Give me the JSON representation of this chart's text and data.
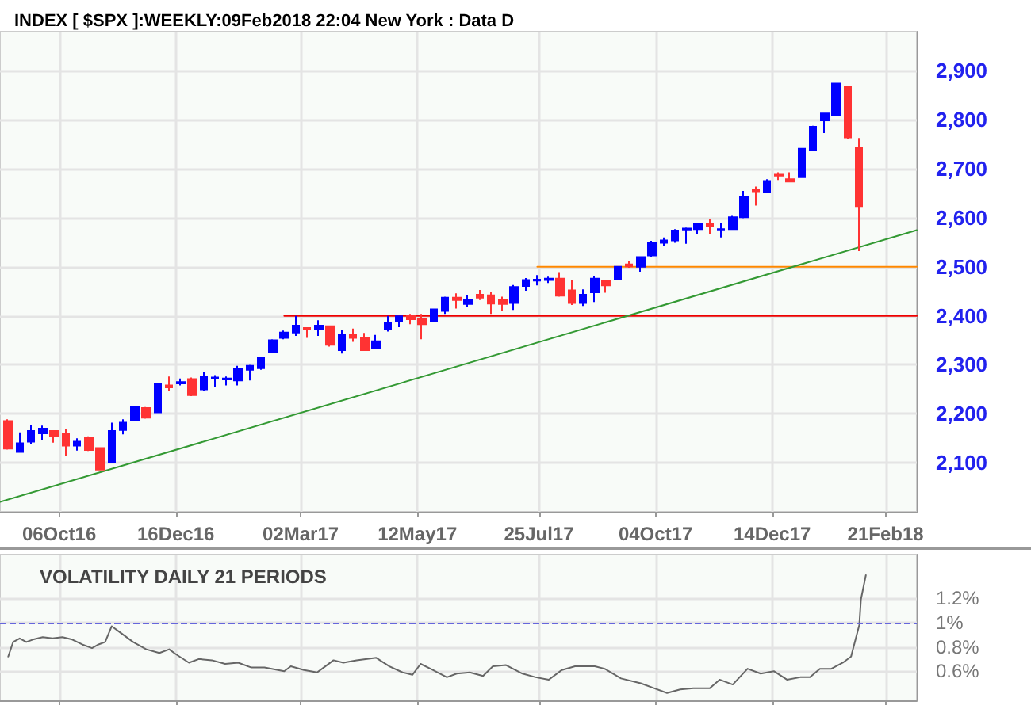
{
  "chart_data": [
    {
      "type": "candlestick",
      "title": "INDEX [ $SPX ]:WEEKLY:09Feb2018 22:04 New York : Data D",
      "xlim": [
        "2016-08-31",
        "2018-03-12"
      ],
      "ylim": [
        2000,
        2980
      ],
      "xticks": [
        {
          "value": "2016-10-06",
          "label": "06Oct16"
        },
        {
          "value": "2016-12-16",
          "label": "16Dec16"
        },
        {
          "value": "2017-03-02",
          "label": "02Mar17"
        },
        {
          "value": "2017-05-12",
          "label": "12May17"
        },
        {
          "value": "2017-07-25",
          "label": "25Jul17"
        },
        {
          "value": "2017-10-04",
          "label": "04Oct17"
        },
        {
          "value": "2017-12-14",
          "label": "14Dec17"
        },
        {
          "value": "2018-02-21",
          "label": "21Feb18"
        }
      ],
      "yticks": [
        {
          "value": 2100,
          "label": "2,100"
        },
        {
          "value": 2200,
          "label": "2,200"
        },
        {
          "value": 2300,
          "label": "2,300"
        },
        {
          "value": 2400,
          "label": "2,400"
        },
        {
          "value": 2500,
          "label": "2,500"
        },
        {
          "value": 2600,
          "label": "2,600"
        },
        {
          "value": 2700,
          "label": "2,700"
        },
        {
          "value": 2800,
          "label": "2,800"
        },
        {
          "value": 2900,
          "label": "2,900"
        }
      ],
      "grid": true,
      "series": [
        {
          "type": "candlestick",
          "x": [
            "2016-09-05",
            "2016-09-12",
            "2016-09-19",
            "2016-09-26",
            "2016-10-03",
            "2016-10-10",
            "2016-10-17",
            "2016-10-24",
            "2016-10-31",
            "2016-11-07",
            "2016-11-14",
            "2016-11-21",
            "2016-11-28",
            "2016-12-05",
            "2016-12-12",
            "2016-12-19",
            "2016-12-26",
            "2017-01-02",
            "2017-01-09",
            "2017-01-16",
            "2017-01-23",
            "2017-01-30",
            "2017-02-06",
            "2017-02-13",
            "2017-02-20",
            "2017-02-27",
            "2017-03-06",
            "2017-03-13",
            "2017-03-20",
            "2017-03-27",
            "2017-04-03",
            "2017-04-10",
            "2017-04-17",
            "2017-04-24",
            "2017-05-01",
            "2017-05-08",
            "2017-05-15",
            "2017-05-22",
            "2017-05-29",
            "2017-06-05",
            "2017-06-12",
            "2017-06-19",
            "2017-06-26",
            "2017-07-03",
            "2017-07-10",
            "2017-07-17",
            "2017-07-24",
            "2017-07-31",
            "2017-08-07",
            "2017-08-14",
            "2017-08-21",
            "2017-08-28",
            "2017-09-04",
            "2017-09-11",
            "2017-09-18",
            "2017-09-25",
            "2017-10-02",
            "2017-10-09",
            "2017-10-16",
            "2017-10-23",
            "2017-10-30",
            "2017-11-06",
            "2017-11-13",
            "2017-11-20",
            "2017-11-27",
            "2017-12-04",
            "2017-12-11",
            "2017-12-18",
            "2017-12-25",
            "2018-01-01",
            "2018-01-08",
            "2018-01-15",
            "2018-01-22",
            "2018-01-29",
            "2018-02-05"
          ],
          "ohlc": [
            [
              2185,
              2189,
              2127,
              2129
            ],
            [
              2122,
              2162,
              2122,
              2140
            ],
            [
              2143,
              2178,
              2138,
              2165
            ],
            [
              2160,
              2176,
              2146,
              2170
            ],
            [
              2165,
              2165,
              2141,
              2154
            ],
            [
              2159,
              2168,
              2115,
              2135
            ],
            [
              2135,
              2150,
              2125,
              2143
            ],
            [
              2151,
              2154,
              2124,
              2126
            ],
            [
              2130,
              2130,
              2086,
              2086
            ],
            [
              2102,
              2182,
              2102,
              2165
            ],
            [
              2167,
              2189,
              2158,
              2182
            ],
            [
              2187,
              2214,
              2187,
              2214
            ],
            [
              2212,
              2214,
              2190,
              2192
            ],
            [
              2203,
              2261,
              2203,
              2261
            ],
            [
              2258,
              2276,
              2247,
              2254
            ],
            [
              2262,
              2272,
              2258,
              2265
            ],
            [
              2271,
              2274,
              2236,
              2238
            ],
            [
              2250,
              2285,
              2247,
              2276
            ],
            [
              2272,
              2279,
              2255,
              2274
            ],
            [
              2270,
              2276,
              2258,
              2272
            ],
            [
              2268,
              2298,
              2258,
              2292
            ],
            [
              2290,
              2300,
              2268,
              2298
            ],
            [
              2293,
              2317,
              2290,
              2315
            ],
            [
              2325,
              2352,
              2325,
              2350
            ],
            [
              2355,
              2370,
              2352,
              2366
            ],
            [
              2366,
              2400,
              2359,
              2380
            ],
            [
              2375,
              2377,
              2355,
              2373
            ],
            [
              2372,
              2391,
              2359,
              2380
            ],
            [
              2379,
              2380,
              2337,
              2341
            ],
            [
              2330,
              2372,
              2323,
              2361
            ],
            [
              2361,
              2374,
              2347,
              2355
            ],
            [
              2355,
              2365,
              2330,
              2330
            ],
            [
              2334,
              2361,
              2334,
              2348
            ],
            [
              2372,
              2400,
              2368,
              2385
            ],
            [
              2388,
              2399,
              2377,
              2399
            ],
            [
              2401,
              2404,
              2383,
              2393
            ],
            [
              2393,
              2404,
              2352,
              2383
            ],
            [
              2388,
              2415,
              2388,
              2413
            ],
            [
              2410,
              2439,
              2404,
              2437
            ],
            [
              2437,
              2446,
              2415,
              2432
            ],
            [
              2424,
              2442,
              2418,
              2433
            ],
            [
              2443,
              2453,
              2432,
              2437
            ],
            [
              2442,
              2448,
              2404,
              2425
            ],
            [
              2432,
              2439,
              2410,
              2424
            ],
            [
              2426,
              2463,
              2412,
              2459
            ],
            [
              2461,
              2477,
              2451,
              2473
            ],
            [
              2472,
              2483,
              2462,
              2474
            ],
            [
              2473,
              2480,
              2467,
              2476
            ],
            [
              2476,
              2489,
              2439,
              2441
            ],
            [
              2452,
              2473,
              2422,
              2426
            ],
            [
              2426,
              2454,
              2420,
              2443
            ],
            [
              2448,
              2482,
              2428,
              2476
            ],
            [
              2471,
              2473,
              2447,
              2462
            ],
            [
              2474,
              2500,
              2474,
              2500
            ],
            [
              2505,
              2512,
              2498,
              2501
            ],
            [
              2500,
              2520,
              2490,
              2520
            ],
            [
              2523,
              2553,
              2520,
              2549
            ],
            [
              2549,
              2560,
              2543,
              2554
            ],
            [
              2554,
              2577,
              2549,
              2574
            ],
            [
              2576,
              2580,
              2547,
              2578
            ],
            [
              2577,
              2590,
              2566,
              2587
            ],
            [
              2587,
              2597,
              2566,
              2582
            ],
            [
              2576,
              2590,
              2560,
              2577
            ],
            [
              2577,
              2604,
              2577,
              2601
            ],
            [
              2601,
              2655,
              2599,
              2643
            ],
            [
              2657,
              2664,
              2625,
              2654
            ],
            [
              2653,
              2679,
              2650,
              2675
            ],
            [
              2688,
              2693,
              2677,
              2686
            ],
            [
              2679,
              2693,
              2674,
              2674
            ],
            [
              2683,
              2741,
              2683,
              2741
            ],
            [
              2739,
              2788,
              2737,
              2786
            ],
            [
              2799,
              2813,
              2773,
              2813
            ],
            [
              2810,
              2874,
              2810,
              2874
            ],
            [
              2868,
              2870,
              2761,
              2764
            ],
            [
              2743,
              2763,
              2532,
              2624
            ]
          ],
          "colors": [
            "#ff3333",
            "#0000ff",
            "#0000ff",
            "#0000ff",
            "#ff3333",
            "#ff3333",
            "#0000ff",
            "#ff3333",
            "#ff3333",
            "#0000ff",
            "#0000ff",
            "#0000ff",
            "#ff3333",
            "#0000ff",
            "#ff3333",
            "#0000ff",
            "#ff3333",
            "#0000ff",
            "#0000ff",
            "#0000ff",
            "#0000ff",
            "#0000ff",
            "#0000ff",
            "#0000ff",
            "#0000ff",
            "#0000ff",
            "#ff3333",
            "#0000ff",
            "#ff3333",
            "#0000ff",
            "#ff3333",
            "#ff3333",
            "#0000ff",
            "#0000ff",
            "#0000ff",
            "#ff3333",
            "#ff3333",
            "#0000ff",
            "#0000ff",
            "#ff3333",
            "#0000ff",
            "#ff3333",
            "#ff3333",
            "#ff3333",
            "#0000ff",
            "#0000ff",
            "#0000ff",
            "#0000ff",
            "#ff3333",
            "#ff3333",
            "#0000ff",
            "#0000ff",
            "#ff3333",
            "#0000ff",
            "#ff3333",
            "#0000ff",
            "#0000ff",
            "#0000ff",
            "#0000ff",
            "#0000ff",
            "#0000ff",
            "#ff3333",
            "#0000ff",
            "#0000ff",
            "#0000ff",
            "#ff3333",
            "#0000ff",
            "#ff3333",
            "#ff3333",
            "#0000ff",
            "#0000ff",
            "#0000ff",
            "#0000ff",
            "#ff3333",
            "#ff3333"
          ]
        },
        {
          "type": "line",
          "color": "#ee0000",
          "x": [
            "2017-02-20",
            "2018-03-12"
          ],
          "values": [
            2400,
            2400
          ]
        },
        {
          "type": "line",
          "color": "#ff8800",
          "x": [
            "2017-07-24",
            "2018-03-12"
          ],
          "values": [
            2500,
            2500
          ]
        },
        {
          "type": "line",
          "color": "#339933",
          "x": [
            "2016-08-31",
            "2018-03-12"
          ],
          "values": [
            2020,
            2575
          ]
        }
      ]
    },
    {
      "type": "line",
      "title": "VOLATILITY DAILY 21 PERIODS",
      "xlim": [
        "2016-08-31",
        "2018-03-12"
      ],
      "ylim": [
        0.36,
        1.56
      ],
      "xticks": [
        {
          "value": "2016-10-06",
          "label": null
        },
        {
          "value": "2016-12-16",
          "label": null
        },
        {
          "value": "2017-03-02",
          "label": null
        },
        {
          "value": "2017-05-12",
          "label": null
        },
        {
          "value": "2017-07-25",
          "label": null
        },
        {
          "value": "2017-10-04",
          "label": null
        },
        {
          "value": "2017-12-14",
          "label": null
        },
        {
          "value": "2018-02-21",
          "label": null
        }
      ],
      "yticks": [
        {
          "value": 0.6,
          "label": "0.6%"
        },
        {
          "value": 0.8,
          "label": "0.8%"
        },
        {
          "value": 1,
          "label": "1%"
        },
        {
          "value": 1.2,
          "label": "1.2%"
        }
      ],
      "grid": true,
      "tick_labels": "y",
      "marker": "none",
      "ref_lines": [
        {
          "axis": "y",
          "value": 1,
          "color": "#6666dd",
          "line_style": "dashed"
        }
      ],
      "series": [
        {
          "color": "#666666",
          "x": [
            "2016-09-05",
            "2016-09-08",
            "2016-09-12",
            "2016-09-16",
            "2016-09-20",
            "2016-09-26",
            "2016-10-02",
            "2016-10-08",
            "2016-10-14",
            "2016-10-20",
            "2016-10-26",
            "2016-10-30",
            "2016-11-03",
            "2016-11-07",
            "2016-11-12",
            "2016-11-20",
            "2016-11-28",
            "2016-12-06",
            "2016-12-12",
            "2016-12-16",
            "2016-12-24",
            "2016-12-30",
            "2017-01-07",
            "2017-01-15",
            "2017-01-23",
            "2017-01-31",
            "2017-02-08",
            "2017-02-20",
            "2017-02-24",
            "2017-03-04",
            "2017-03-12",
            "2017-03-16",
            "2017-03-22",
            "2017-03-28",
            "2017-04-05",
            "2017-04-17",
            "2017-04-25",
            "2017-05-03",
            "2017-05-09",
            "2017-05-14",
            "2017-05-20",
            "2017-05-30",
            "2017-06-05",
            "2017-06-13",
            "2017-06-21",
            "2017-06-27",
            "2017-07-05",
            "2017-07-15",
            "2017-07-23",
            "2017-07-31",
            "2017-08-08",
            "2017-08-16",
            "2017-08-28",
            "2017-09-03",
            "2017-09-13",
            "2017-09-25",
            "2017-10-03",
            "2017-10-11",
            "2017-10-19",
            "2017-10-27",
            "2017-11-06",
            "2017-11-12",
            "2017-11-20",
            "2017-11-29",
            "2017-12-07",
            "2017-12-15",
            "2017-12-23",
            "2017-12-31",
            "2018-01-06",
            "2018-01-12",
            "2018-01-19",
            "2018-01-26",
            "2018-01-31",
            "2018-02-05",
            "2018-02-06",
            "2018-02-09"
          ],
          "values": [
            0.72,
            0.84,
            0.87,
            0.84,
            0.86,
            0.88,
            0.87,
            0.88,
            0.86,
            0.82,
            0.79,
            0.82,
            0.84,
            0.97,
            0.92,
            0.84,
            0.78,
            0.75,
            0.78,
            0.74,
            0.67,
            0.7,
            0.69,
            0.66,
            0.67,
            0.63,
            0.63,
            0.6,
            0.64,
            0.61,
            0.59,
            0.63,
            0.69,
            0.67,
            0.69,
            0.71,
            0.64,
            0.59,
            0.57,
            0.66,
            0.62,
            0.55,
            0.58,
            0.59,
            0.56,
            0.64,
            0.65,
            0.58,
            0.55,
            0.53,
            0.61,
            0.64,
            0.64,
            0.62,
            0.54,
            0.5,
            0.46,
            0.42,
            0.45,
            0.46,
            0.46,
            0.53,
            0.49,
            0.62,
            0.58,
            0.6,
            0.53,
            0.55,
            0.55,
            0.62,
            0.62,
            0.67,
            0.72,
            0.98,
            1.19,
            1.39
          ]
        }
      ]
    }
  ]
}
